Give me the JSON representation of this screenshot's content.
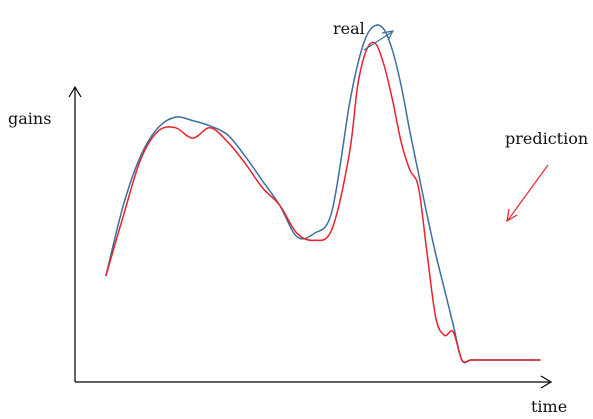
{
  "chart_data": {
    "type": "line",
    "title": "",
    "xlabel": "time",
    "ylabel": "gains",
    "grid": false,
    "legend": "annotations",
    "xlim": [
      0,
      100
    ],
    "ylim": [
      0,
      100
    ],
    "colors": {
      "real": "#3b6fa0",
      "prediction": "#e8222a",
      "axis": "#000000"
    },
    "annotations": [
      {
        "text": "real",
        "series": "real",
        "color": "#3b6fa0"
      },
      {
        "text": "prediction",
        "series": "prediction",
        "color": "#e8222a"
      }
    ],
    "series": [
      {
        "name": "real",
        "color": "#3b6fa0",
        "x": [
          0,
          4,
          8,
          12,
          16,
          20,
          24,
          28,
          32,
          36,
          40,
          44,
          48,
          52,
          56,
          58,
          60,
          62,
          64,
          66,
          68,
          70,
          72,
          74,
          76,
          78,
          80,
          82,
          84,
          86,
          88,
          90,
          92,
          94,
          96,
          98,
          100
        ],
        "y": [
          24,
          44,
          58,
          66,
          69,
          68,
          66.5,
          64,
          58,
          51,
          44,
          35,
          36,
          42,
          72,
          84,
          92,
          95,
          94,
          88,
          78,
          65,
          53,
          41,
          30,
          20,
          10,
          0,
          0,
          0,
          0,
          0,
          0,
          0,
          0,
          0,
          0
        ]
      },
      {
        "name": "prediction",
        "color": "#e8222a",
        "x": [
          0,
          4,
          8,
          12,
          16,
          20,
          24,
          28,
          32,
          36,
          40,
          44,
          48,
          52,
          56,
          58,
          60,
          62,
          64,
          66,
          68,
          70,
          72,
          74,
          76,
          78,
          80,
          82,
          84,
          86,
          88,
          90,
          92,
          94,
          96,
          98,
          100
        ],
        "y": [
          24,
          41,
          57,
          65,
          66,
          63,
          66,
          62,
          56,
          49,
          44,
          36,
          34,
          37,
          58,
          78,
          88,
          90,
          84,
          74,
          62,
          54,
          49,
          30,
          12,
          7,
          8,
          0,
          0,
          0,
          0,
          0,
          0,
          0,
          0,
          0,
          0
        ]
      }
    ]
  }
}
